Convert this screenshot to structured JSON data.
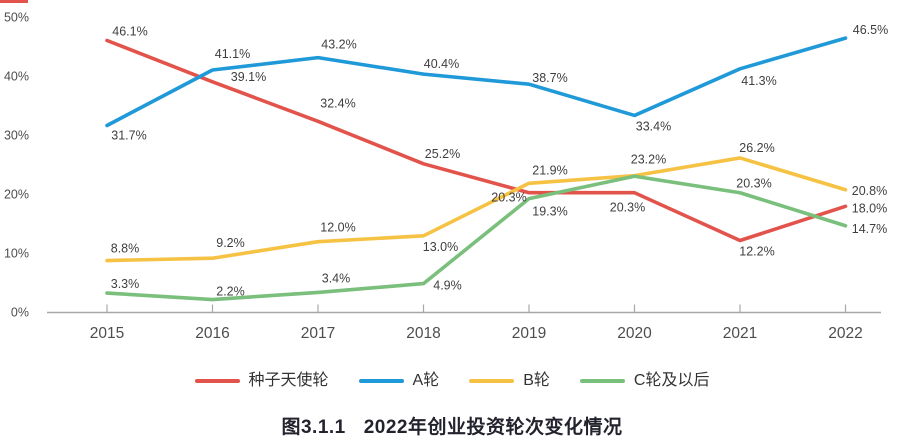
{
  "caption": {
    "prefix": "图3.1.1",
    "title": "2022年创业投资轮次变化情况"
  },
  "chart_data": {
    "type": "line",
    "title": "图3.1.1 2022年创业投资轮次变化情况",
    "x": [
      "2015",
      "2016",
      "2017",
      "2018",
      "2019",
      "2020",
      "2021",
      "2022"
    ],
    "y_axis": {
      "ticks": [
        "0%",
        "10%",
        "20%",
        "30%",
        "40%",
        "50%"
      ],
      "min": 0,
      "max": 50,
      "grid": false
    },
    "legend_position": "bottom",
    "series": [
      {
        "id": "seed-angel-round",
        "name": "种子天使轮",
        "color": "#E2544B",
        "values": [
          46.1,
          39.1,
          32.4,
          25.2,
          20.3,
          20.3,
          12.2,
          18.0
        ],
        "labels": [
          "46.1%",
          "39.1%",
          "32.4%",
          "25.2%",
          "20.3%",
          "20.3%",
          "12.2%",
          "18.0%"
        ],
        "label_offsets": [
          [
            23,
            -9
          ],
          [
            36,
            -5
          ],
          [
            20,
            -18
          ],
          [
            19,
            -10
          ],
          [
            -20,
            5
          ],
          [
            -7,
            15
          ],
          [
            17,
            11
          ],
          [
            24,
            2
          ]
        ]
      },
      {
        "id": "a-round",
        "name": "A轮",
        "color": "#2099D9",
        "values": [
          31.7,
          41.1,
          43.2,
          40.4,
          38.7,
          33.4,
          41.3,
          46.5
        ],
        "labels": [
          "31.7%",
          "41.1%",
          "43.2%",
          "40.4%",
          "38.7%",
          "33.4%",
          "41.3%",
          "46.5%"
        ],
        "label_offsets": [
          [
            22,
            10
          ],
          [
            20,
            -16
          ],
          [
            21,
            -13
          ],
          [
            18,
            -10
          ],
          [
            21,
            -6
          ],
          [
            19,
            11
          ],
          [
            19,
            12
          ],
          [
            25,
            -8
          ]
        ]
      },
      {
        "id": "b-round",
        "name": "B轮",
        "color": "#F6C243",
        "values": [
          8.8,
          9.2,
          12.0,
          13.0,
          21.9,
          23.2,
          26.2,
          20.8
        ],
        "labels": [
          "8.8%",
          "9.2%",
          "12.0%",
          "13.0%",
          "21.9%",
          "23.2%",
          "26.2%",
          "20.8%"
        ],
        "label_offsets": [
          [
            18,
            -12
          ],
          [
            18,
            -15
          ],
          [
            20,
            -14
          ],
          [
            17,
            11
          ],
          [
            21,
            -13
          ],
          [
            14,
            -16
          ],
          [
            17,
            -10
          ],
          [
            24,
            1
          ]
        ]
      },
      {
        "id": "c-round-and-later",
        "name": "C轮及以后",
        "color": "#7ABF7C",
        "values": [
          3.3,
          2.2,
          3.4,
          4.9,
          19.3,
          23.1,
          20.3,
          14.7
        ],
        "labels": [
          "3.3%",
          "2.2%",
          "3.4%",
          "4.9%",
          "19.3%",
          null,
          "20.3%",
          "14.7%"
        ],
        "label_offsets": [
          [
            18,
            -9
          ],
          [
            18,
            -8
          ],
          [
            18,
            -14
          ],
          [
            24,
            2
          ],
          [
            21,
            13
          ],
          null,
          [
            14,
            -9
          ],
          [
            24,
            3
          ]
        ]
      }
    ]
  },
  "style": {
    "axis_color": "#A8A8A8",
    "axis_text_color": "#4D4D4D",
    "data_label_color": "#3F3F3F",
    "corner_mark_color": "#E2544B"
  }
}
